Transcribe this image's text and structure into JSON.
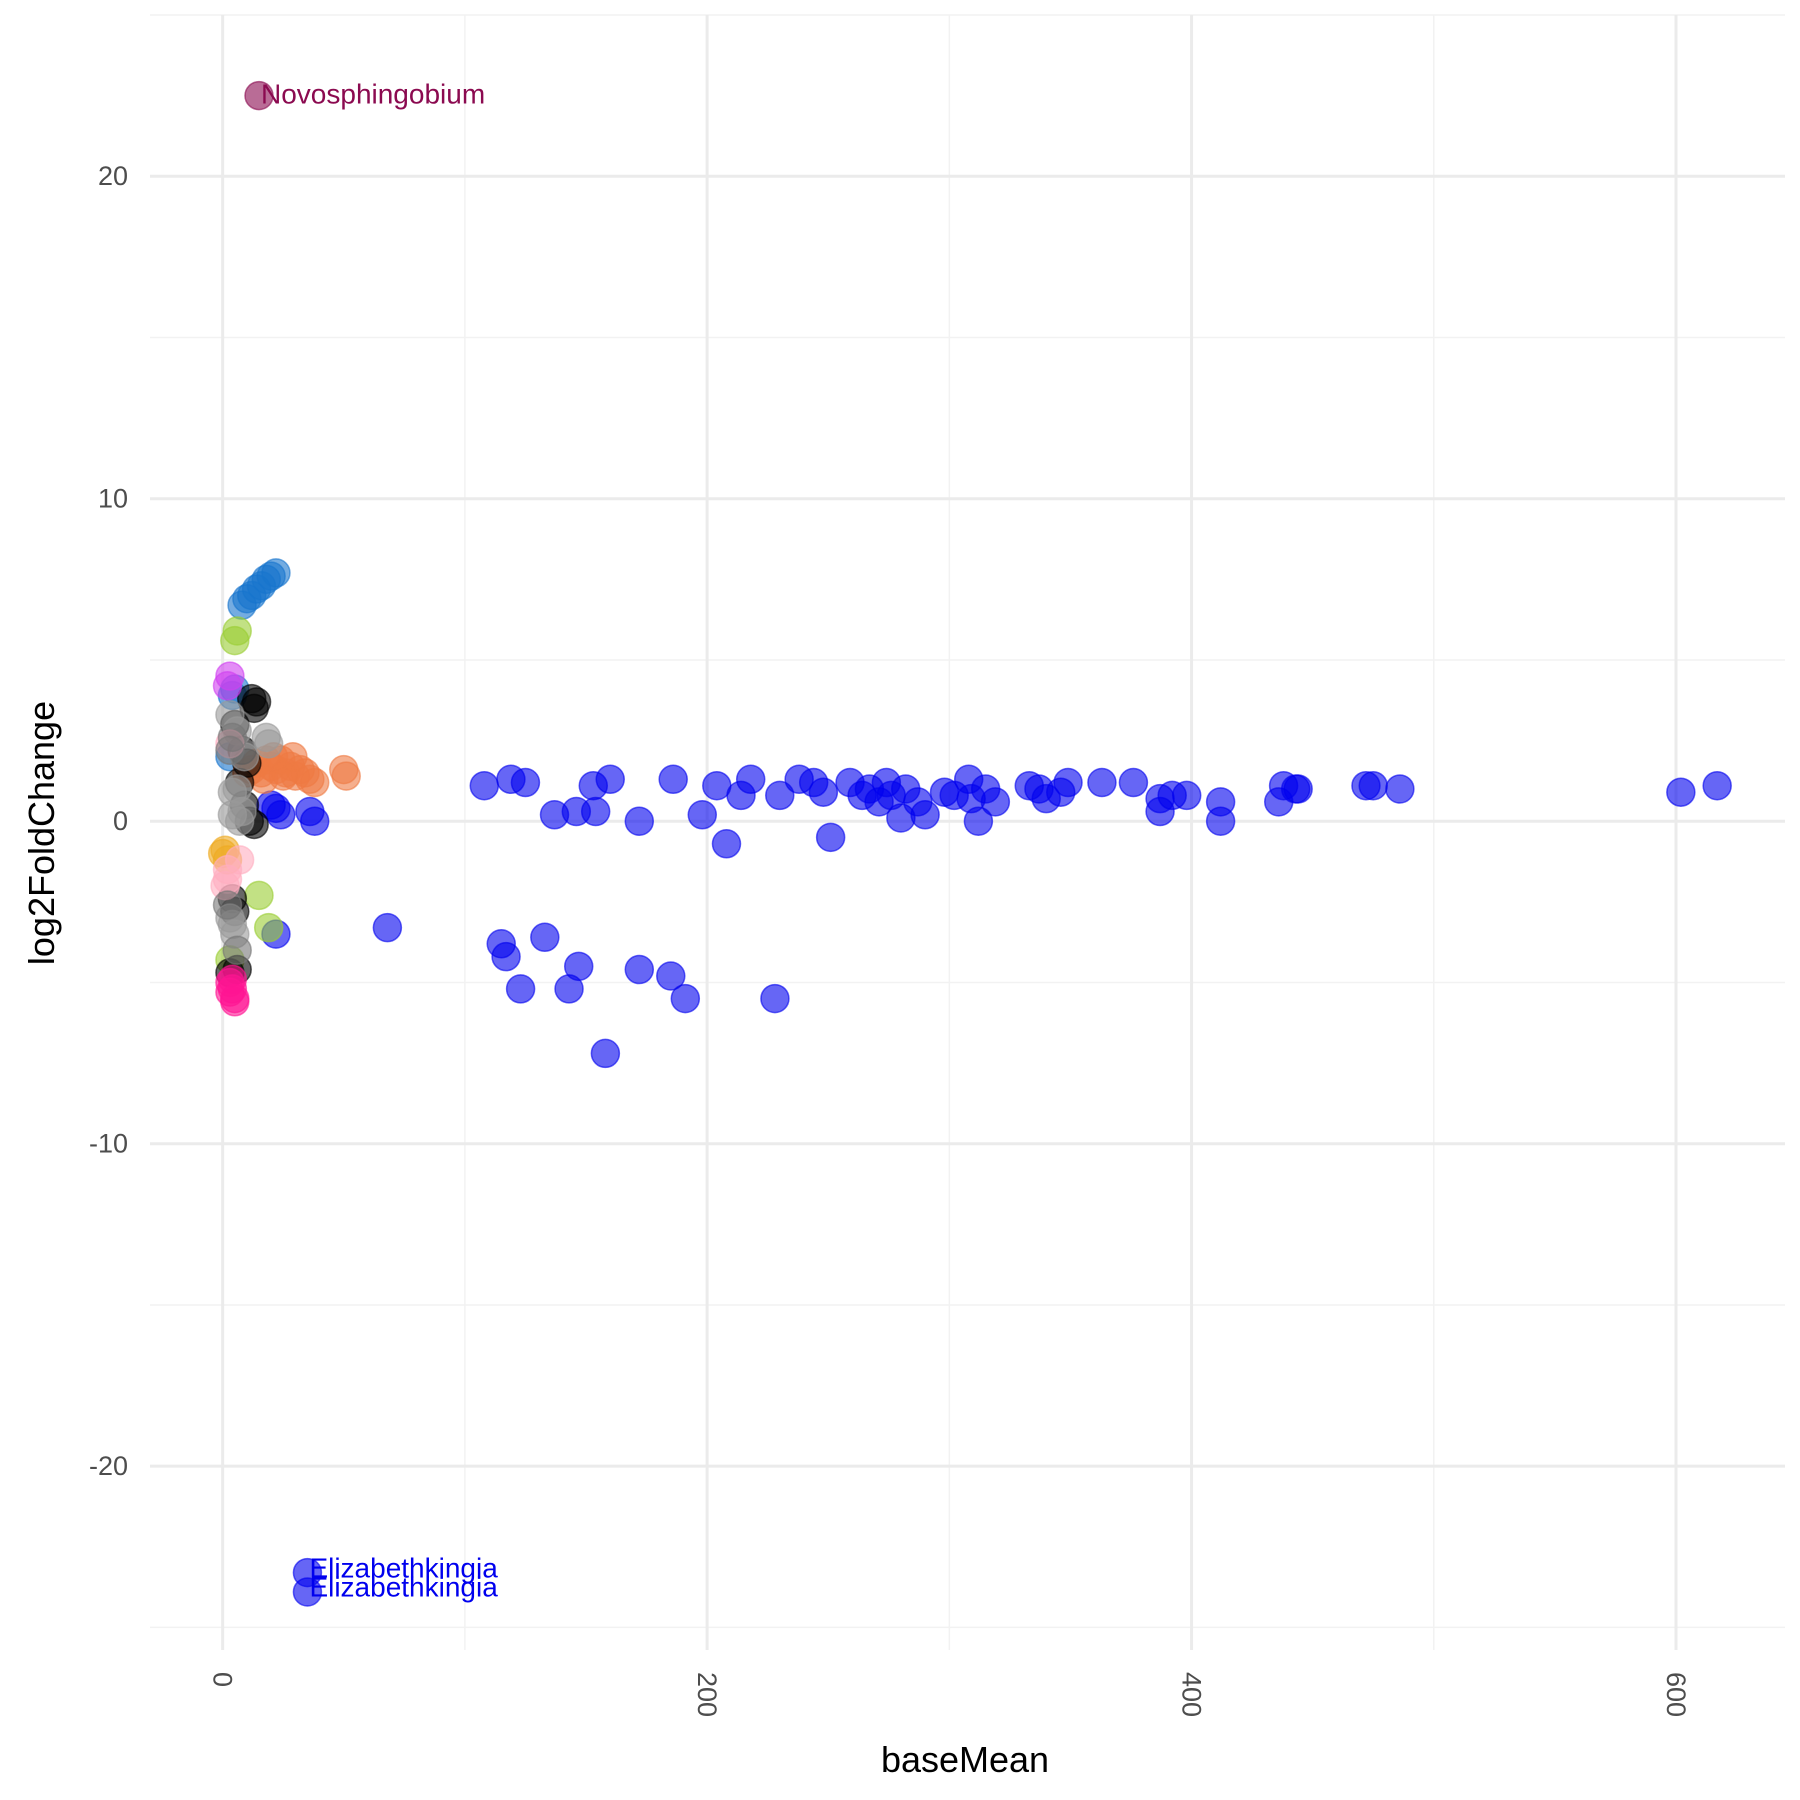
{
  "chart_data": {
    "type": "scatter",
    "title": "",
    "xlabel": "baseMean",
    "ylabel": "log2FoldChange",
    "xlim": [
      -30,
      645
    ],
    "ylim": [
      -25.7,
      25
    ],
    "x_ticks": [
      0,
      200,
      400,
      600
    ],
    "y_ticks": [
      -20,
      -10,
      0,
      10,
      20
    ],
    "grid": true,
    "legend": "none",
    "point_alpha": 0.6,
    "colors": {
      "blue": "#0000ee",
      "steelblue": "#1874cd",
      "green": "#9acd32",
      "purple": "#8b0a50",
      "orange": "#ee7942",
      "black": "#000000",
      "grey": "#999999",
      "gold": "#eeaa22",
      "pink": "#ff1493",
      "lightpink": "#ffaec0",
      "violet": "#d040f0",
      "darkgrey": "#777777"
    },
    "labels": [
      {
        "text": "Novosphingobium",
        "x": 15,
        "y": 22.5,
        "color": "purple"
      },
      {
        "text": "Elizabethkingia",
        "x": 35,
        "y": -23.2,
        "color": "blue"
      },
      {
        "text": "Elizabethkingia",
        "x": 35,
        "y": -23.8,
        "color": "blue"
      }
    ],
    "series": [
      {
        "color": "blue",
        "points": [
          [
            108,
            1.1
          ],
          [
            119,
            1.3
          ],
          [
            125,
            1.2
          ],
          [
            137,
            0.2
          ],
          [
            146,
            0.3
          ],
          [
            153,
            1.1
          ],
          [
            154,
            0.3
          ],
          [
            160,
            1.3
          ],
          [
            172,
            0.0
          ],
          [
            186,
            1.3
          ],
          [
            198,
            0.2
          ],
          [
            204,
            1.1
          ],
          [
            214,
            0.8
          ],
          [
            218,
            1.3
          ],
          [
            230,
            0.8
          ],
          [
            238,
            1.3
          ],
          [
            244,
            1.2
          ],
          [
            248,
            0.9
          ],
          [
            251,
            -0.5
          ],
          [
            259,
            1.2
          ],
          [
            264,
            0.8
          ],
          [
            267,
            1.0
          ],
          [
            271,
            0.6
          ],
          [
            274,
            1.2
          ],
          [
            276,
            0.8
          ],
          [
            280,
            0.1
          ],
          [
            282,
            1.0
          ],
          [
            287,
            0.6
          ],
          [
            290,
            0.2
          ],
          [
            298,
            0.9
          ],
          [
            302,
            0.8
          ],
          [
            308,
            1.3
          ],
          [
            309,
            0.7
          ],
          [
            312,
            0.0
          ],
          [
            315,
            1.0
          ],
          [
            319,
            0.6
          ],
          [
            333,
            1.1
          ],
          [
            337,
            1.0
          ],
          [
            340,
            0.7
          ],
          [
            346,
            0.9
          ],
          [
            349,
            1.2
          ],
          [
            363,
            1.2
          ],
          [
            376,
            1.2
          ],
          [
            387,
            0.7
          ],
          [
            387,
            0.3
          ],
          [
            392,
            0.8
          ],
          [
            398,
            0.8
          ],
          [
            412,
            0.6
          ],
          [
            412,
            0.0
          ],
          [
            436,
            0.6
          ],
          [
            438,
            1.1
          ],
          [
            443,
            1.0
          ],
          [
            444,
            1.0
          ],
          [
            472,
            1.1
          ],
          [
            475,
            1.1
          ],
          [
            486,
            1.0
          ],
          [
            602,
            0.9
          ],
          [
            617,
            1.1
          ],
          [
            115,
            -3.8
          ],
          [
            117,
            -4.2
          ],
          [
            123,
            -5.2
          ],
          [
            133,
            -3.6
          ],
          [
            143,
            -5.2
          ],
          [
            147,
            -4.5
          ],
          [
            158,
            -7.2
          ],
          [
            172,
            -4.6
          ],
          [
            185,
            -4.8
          ],
          [
            191,
            -5.5
          ],
          [
            228,
            -5.5
          ],
          [
            208,
            -0.7
          ],
          [
            68,
            -3.3
          ],
          [
            22,
            -3.5
          ],
          [
            36,
            0.3
          ],
          [
            38,
            0.0
          ],
          [
            22,
            0.4
          ],
          [
            24,
            0.2
          ],
          [
            20,
            0.5
          ],
          [
            35,
            -23.3
          ],
          [
            35,
            -23.9
          ]
        ]
      },
      {
        "color": "steelblue",
        "points": [
          [
            8,
            6.7
          ],
          [
            10,
            6.9
          ],
          [
            12,
            7.0
          ],
          [
            14,
            7.2
          ],
          [
            16,
            7.3
          ],
          [
            18,
            7.5
          ],
          [
            20,
            7.6
          ],
          [
            22,
            7.7
          ],
          [
            4,
            3.9
          ],
          [
            3,
            2.0
          ],
          [
            5,
            4.1
          ]
        ]
      },
      {
        "color": "green",
        "points": [
          [
            5,
            5.6
          ],
          [
            6,
            5.9
          ],
          [
            15,
            -2.3
          ],
          [
            19,
            -3.3
          ],
          [
            3,
            -4.3
          ]
        ]
      },
      {
        "color": "purple",
        "points": [
          [
            15,
            22.5
          ]
        ]
      },
      {
        "color": "orange",
        "points": [
          [
            10,
            1.5
          ],
          [
            12,
            1.6
          ],
          [
            14,
            1.8
          ],
          [
            16,
            1.5
          ],
          [
            18,
            1.9
          ],
          [
            20,
            1.7
          ],
          [
            22,
            1.6
          ],
          [
            24,
            1.9
          ],
          [
            26,
            1.5
          ],
          [
            28,
            1.7
          ],
          [
            30,
            1.4
          ],
          [
            32,
            1.6
          ],
          [
            34,
            1.5
          ],
          [
            36,
            1.3
          ],
          [
            38,
            1.2
          ],
          [
            17,
            1.3
          ],
          [
            25,
            1.4
          ],
          [
            21,
            2.0
          ],
          [
            29,
            2.0
          ],
          [
            50,
            1.6
          ],
          [
            51,
            1.4
          ]
        ]
      },
      {
        "color": "black",
        "points": [
          [
            12,
            3.8
          ],
          [
            13,
            3.5
          ],
          [
            5,
            3.0
          ],
          [
            8,
            2.2
          ],
          [
            10,
            1.8
          ],
          [
            7,
            1.2
          ],
          [
            9,
            0.5
          ],
          [
            11,
            0.0
          ],
          [
            13,
            -0.1
          ],
          [
            4,
            -2.4
          ],
          [
            5,
            -2.8
          ],
          [
            3,
            -4.7
          ],
          [
            6,
            -4.6
          ],
          [
            14,
            3.7
          ]
        ]
      },
      {
        "color": "grey",
        "points": [
          [
            3,
            3.3
          ],
          [
            6,
            2.8
          ],
          [
            18,
            2.6
          ],
          [
            19,
            2.4
          ],
          [
            4,
            0.9
          ],
          [
            7,
            0.0
          ],
          [
            8,
            0.3
          ],
          [
            4,
            0.2
          ],
          [
            3,
            -3.0
          ],
          [
            5,
            -3.5
          ],
          [
            4,
            -3.2
          ],
          [
            9,
            2.0
          ],
          [
            6,
            1.0
          ]
        ]
      },
      {
        "color": "gold",
        "points": [
          [
            0,
            -1.0
          ],
          [
            2,
            -1.2
          ],
          [
            1,
            -0.9
          ]
        ]
      },
      {
        "color": "pink",
        "points": [
          [
            3,
            -5.0
          ],
          [
            4,
            -5.2
          ],
          [
            5,
            -5.5
          ],
          [
            3,
            -5.3
          ],
          [
            4,
            -4.9
          ],
          [
            5,
            -5.6
          ]
        ]
      },
      {
        "color": "lightpink",
        "points": [
          [
            2,
            -1.8
          ],
          [
            1,
            -2.0
          ],
          [
            7,
            -1.2
          ],
          [
            3,
            2.4
          ],
          [
            2,
            -1.5
          ]
        ]
      },
      {
        "color": "violet",
        "points": [
          [
            3,
            4.5
          ],
          [
            2,
            4.2
          ]
        ]
      },
      {
        "color": "darkgrey",
        "points": [
          [
            3,
            2.2
          ],
          [
            4,
            2.6
          ],
          [
            2,
            -2.6
          ],
          [
            6,
            -4.0
          ]
        ]
      }
    ]
  }
}
